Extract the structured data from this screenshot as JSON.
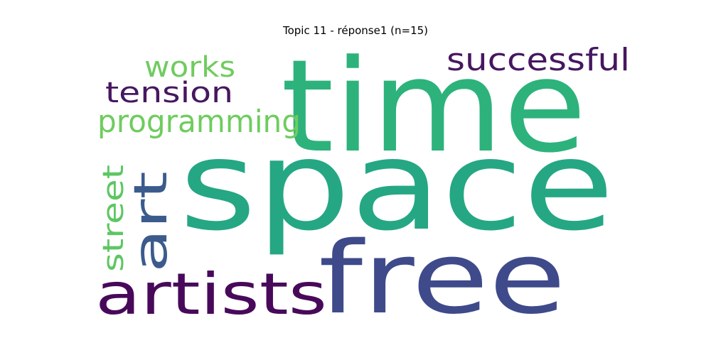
{
  "title": "Topic 11 - réponse1 (n=15)",
  "words": [
    {
      "id": "space",
      "text": "space",
      "color": "#25a784",
      "orientation": "horizontal"
    },
    {
      "id": "time",
      "text": "time",
      "color": "#2db27c",
      "orientation": "horizontal"
    },
    {
      "id": "free",
      "text": "free",
      "color": "#3e4a8a",
      "orientation": "horizontal"
    },
    {
      "id": "artists",
      "text": "artists",
      "color": "#48095a",
      "orientation": "horizontal"
    },
    {
      "id": "art",
      "text": "art",
      "color": "#3b5b8c",
      "orientation": "vertical"
    },
    {
      "id": "successful",
      "text": "successful",
      "color": "#46175f",
      "orientation": "horizontal"
    },
    {
      "id": "programming",
      "text": "programming",
      "color": "#6fcc5e",
      "orientation": "horizontal"
    },
    {
      "id": "tension",
      "text": "tension",
      "color": "#46175f",
      "orientation": "horizontal"
    },
    {
      "id": "works",
      "text": "works",
      "color": "#6fcc5e",
      "orientation": "horizontal"
    },
    {
      "id": "street",
      "text": "street",
      "color": "#5ec664",
      "orientation": "vertical"
    }
  ]
}
